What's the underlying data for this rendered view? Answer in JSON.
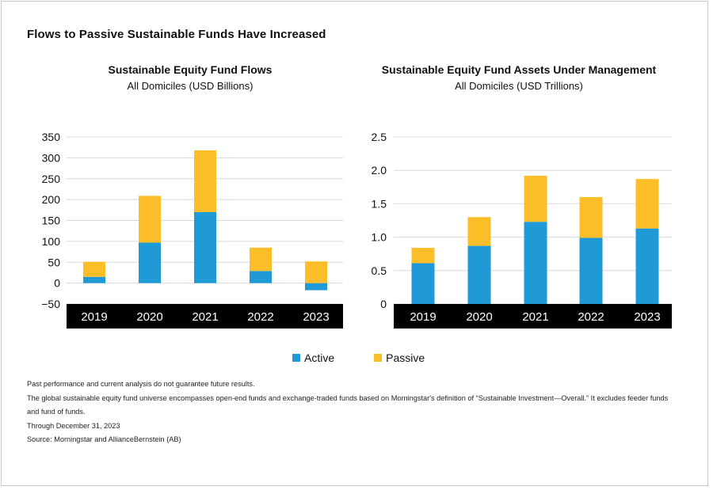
{
  "title": "Flows to Passive Sustainable Funds Have Increased",
  "legend": {
    "active": "Active",
    "passive": "Passive"
  },
  "colors": {
    "active": "#1f9ad6",
    "passive": "#fbbd28",
    "axis_band": "#000000",
    "grid": "#d9d9d9"
  },
  "notes": [
    "Past performance and current analysis do not guarantee future results.",
    "The global sustainable equity fund universe encompasses open-end funds and exchange-traded funds based on Morningstar's definition of “Sustainable Investment—Overall.” It excludes feeder funds",
    "and fund of funds.",
    "Through December 31, 2023",
    "Source: Morningstar and AllianceBernstein (AB)"
  ],
  "chart_data": [
    {
      "type": "bar",
      "stacked": true,
      "title": "Sustainable Equity Fund Flows",
      "subtitle": "All Domiciles (USD Billions)",
      "categories": [
        "2019",
        "2020",
        "2021",
        "2022",
        "2023"
      ],
      "series": [
        {
          "name": "Active",
          "values": [
            15,
            97,
            170,
            29,
            -17
          ]
        },
        {
          "name": "Passive",
          "values": [
            36,
            112,
            148,
            56,
            52
          ]
        }
      ],
      "yticks": [
        350,
        300,
        250,
        200,
        150,
        100,
        50,
        0,
        -50
      ],
      "ytick_labels": [
        "350",
        "300",
        "250",
        "200",
        "150",
        "100",
        "50",
        "0",
        "−50"
      ],
      "ylim": [
        -50,
        350
      ],
      "grid": true
    },
    {
      "type": "bar",
      "stacked": true,
      "title": "Sustainable Equity Fund Assets Under Management",
      "subtitle": "All Domiciles (USD Trillions)",
      "categories": [
        "2019",
        "2020",
        "2021",
        "2022",
        "2023"
      ],
      "series": [
        {
          "name": "Active",
          "values": [
            0.61,
            0.87,
            1.23,
            0.99,
            1.13
          ]
        },
        {
          "name": "Passive",
          "values": [
            0.23,
            0.43,
            0.69,
            0.61,
            0.74
          ]
        }
      ],
      "yticks": [
        2.5,
        2.0,
        1.5,
        1.0,
        0.5,
        0
      ],
      "ytick_labels": [
        "2.5",
        "2.0",
        "1.5",
        "1.0",
        "0.5",
        "0"
      ],
      "ylim": [
        0,
        2.5
      ],
      "grid": true
    }
  ]
}
